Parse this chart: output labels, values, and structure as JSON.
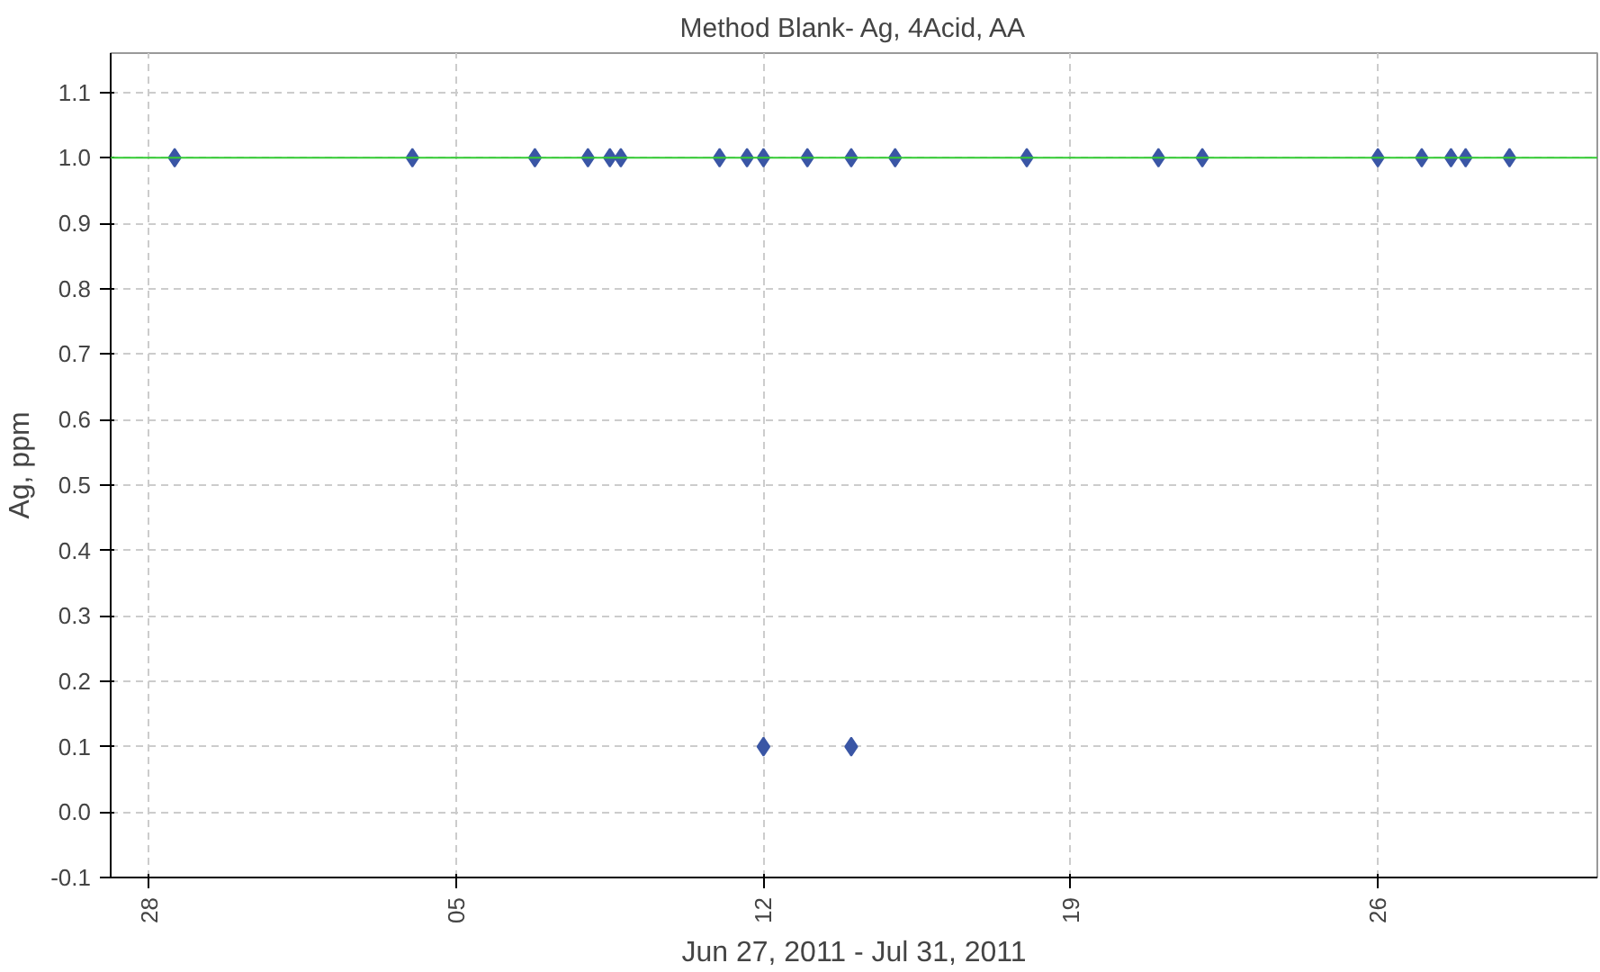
{
  "chart_data": {
    "type": "scatter",
    "title": "Method Blank- Ag, 4Acid, AA",
    "xlabel": "Jun 27, 2011 - Jul 31, 2011",
    "ylabel": "Ag, ppm",
    "x": [
      "2011-06-28T14:00",
      "2011-07-04T00:00",
      "2011-07-06T19:00",
      "2011-07-08T00:00",
      "2011-07-08T12:00",
      "2011-07-08T18:00",
      "2011-07-11T00:00",
      "2011-07-11T15:00",
      "2011-07-12T00:00",
      "2011-07-12T00:00",
      "2011-07-13T00:00",
      "2011-07-14T00:00",
      "2011-07-14T00:00",
      "2011-07-15T00:00",
      "2011-07-18T00:00",
      "2011-07-21T00:00",
      "2011-07-22T00:00",
      "2011-07-26T00:00",
      "2011-07-27T00:00",
      "2011-07-27T16:00",
      "2011-07-28T00:00",
      "2011-07-29T00:00"
    ],
    "series": [
      {
        "color": "#3a56a5",
        "values": [
          1.0,
          1.0,
          1.0,
          1.0,
          1.0,
          1.0,
          1.0,
          1.0,
          1.0,
          0.1,
          1.0,
          1.0,
          0.1,
          1.0,
          1.0,
          1.0,
          1.0,
          1.0,
          1.0,
          1.0,
          1.0,
          1.0
        ]
      }
    ],
    "marker": "diamond",
    "grid": true,
    "xlim": [
      "2011-06-27T03:00",
      "2011-07-31T00:00"
    ],
    "xticks": [
      {
        "value": "2011-06-28",
        "label": "28"
      },
      {
        "value": "2011-07-05",
        "label": "05"
      },
      {
        "value": "2011-07-12",
        "label": "12"
      },
      {
        "value": "2011-07-19",
        "label": "19"
      },
      {
        "value": "2011-07-26",
        "label": "26"
      }
    ],
    "ylim": [
      -0.1,
      1.16
    ],
    "yticks": [
      {
        "value": -0.1,
        "label": "-0.1"
      },
      {
        "value": 0,
        "label": "0.0"
      },
      0.1,
      0.2,
      0.3,
      0.4,
      0.5,
      0.6,
      0.7,
      0.8,
      0.9,
      {
        "value": 1,
        "label": "1.0"
      },
      1.1
    ],
    "ref_lines": [
      {
        "axis": "y",
        "value": 1.0,
        "label": null,
        "color": "#33cc33"
      }
    ]
  }
}
